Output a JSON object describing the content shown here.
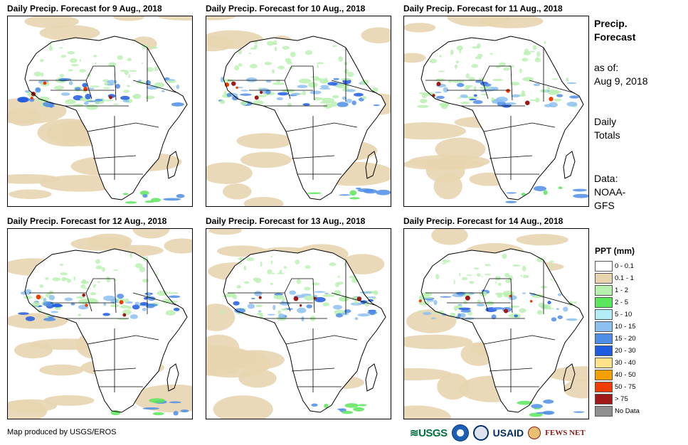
{
  "panels": [
    {
      "title": "Daily Precip. Forecast for 9 Aug., 2018"
    },
    {
      "title": "Daily Precip. Forecast for 10 Aug., 2018"
    },
    {
      "title": "Daily Precip. Forecast for 11 Aug., 2018"
    },
    {
      "title": "Daily Precip. Forecast for 12 Aug., 2018"
    },
    {
      "title": "Daily Precip. Forecast for 13 Aug., 2018"
    },
    {
      "title": "Daily Precip. Forecast for 14 Aug., 2018"
    }
  ],
  "sidebar": {
    "heading_line1": "Precip.",
    "heading_line2": "Forecast",
    "asof_label": "as of:",
    "asof_date": "Aug 9, 2018",
    "totals_line1": "Daily",
    "totals_line2": "Totals",
    "data_line1": "Data:",
    "data_line2": "NOAA-",
    "data_line3": "GFS"
  },
  "legend": {
    "title": "PPT (mm)",
    "items": [
      {
        "label": "0 - 0.1",
        "color": "#ffffff"
      },
      {
        "label": "0.1 - 1",
        "color": "#e8d5b0"
      },
      {
        "label": "1 - 2",
        "color": "#b8f0b0"
      },
      {
        "label": "2 - 5",
        "color": "#5ce65c"
      },
      {
        "label": "5 - 10",
        "color": "#b4ecf5"
      },
      {
        "label": "10 - 15",
        "color": "#8cc0f0"
      },
      {
        "label": "15 - 20",
        "color": "#4f8ee6"
      },
      {
        "label": "20 - 30",
        "color": "#1f5ce0"
      },
      {
        "label": "30 - 40",
        "color": "#fce38a"
      },
      {
        "label": "40 - 50",
        "color": "#f5a000"
      },
      {
        "label": "50 - 75",
        "color": "#f03c00"
      },
      {
        "label": "> 75",
        "color": "#a01818"
      },
      {
        "label": "No Data",
        "color": "#909090"
      }
    ]
  },
  "footer": {
    "credit": "Map produced by USGS/EROS",
    "logo_usgs": "USGS",
    "logo_usaid": "USAID",
    "logo_fews": "FEWS NET"
  }
}
